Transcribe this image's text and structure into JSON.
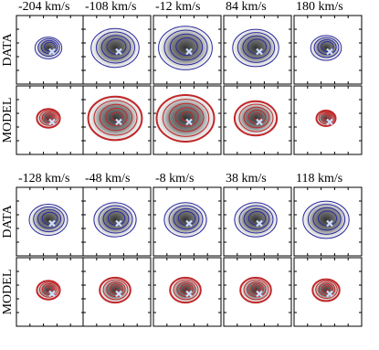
{
  "groups": [
    {
      "velocities": [
        "-204 km/s",
        "-108 km/s",
        "-12 km/s",
        "84 km/s",
        "180 km/s"
      ],
      "rows": [
        "DATA",
        "MODEL"
      ]
    },
    {
      "velocities": [
        "-128 km/s",
        "-48 km/s",
        "-8 km/s",
        "38 km/s",
        "118 km/s"
      ],
      "rows": [
        "DATA",
        "MODEL"
      ]
    }
  ]
}
